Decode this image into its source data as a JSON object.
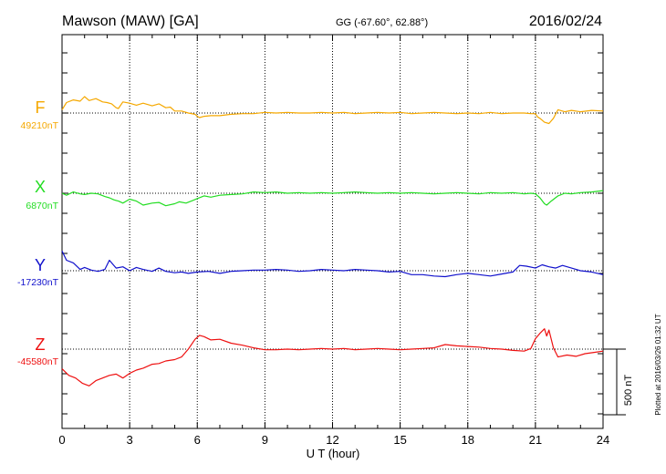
{
  "header": {
    "station": "Mawson (MAW)  [GA]",
    "coords": "GG (-67.60°,  62.88°)",
    "date": "2016/02/24"
  },
  "scale_label": "500 nT",
  "footer": "Plotted at 2016/03/26 01:32 UT",
  "colors": {
    "F": "#f5a800",
    "X": "#22dd22",
    "Y": "#1010cc",
    "Z": "#ee1010",
    "axis": "#000000",
    "grid": "#000000"
  },
  "chart_data": {
    "type": "line",
    "xlabel": "U T (hour)",
    "xlim": [
      0,
      24
    ],
    "x_ticks": [
      "0",
      "3",
      "6",
      "9",
      "12",
      "15",
      "18",
      "21",
      "24"
    ],
    "scale_nT": 500,
    "series": [
      {
        "name": "F",
        "baseline_label": "49210nT",
        "baseline": 49210,
        "x": [
          0,
          0.2,
          0.5,
          0.8,
          1.0,
          1.2,
          1.5,
          1.8,
          2.0,
          2.2,
          2.4,
          2.5,
          2.7,
          3.0,
          3.3,
          3.6,
          4.0,
          4.3,
          4.6,
          4.8,
          5.0,
          5.3,
          5.6,
          5.9,
          6.0,
          6.1,
          6.3,
          6.6,
          7.0,
          7.5,
          8.0,
          8.5,
          9.0,
          9.5,
          10,
          10.5,
          11,
          11.5,
          12,
          12.5,
          13,
          13.5,
          14,
          14.5,
          15,
          15.5,
          16,
          16.5,
          17,
          17.5,
          18,
          18.5,
          19,
          19.5,
          20,
          20.5,
          20.8,
          21.0,
          21.1,
          21.2,
          21.4,
          21.6,
          21.7,
          21.8,
          22.0,
          22.3,
          22.6,
          23,
          23.5,
          24
        ],
        "values": [
          25,
          80,
          100,
          90,
          125,
          95,
          110,
          85,
          80,
          70,
          40,
          35,
          85,
          75,
          60,
          75,
          55,
          70,
          40,
          45,
          15,
          15,
          0,
          -10,
          -25,
          -35,
          -25,
          -20,
          -20,
          -10,
          -5,
          -5,
          5,
          0,
          5,
          0,
          0,
          5,
          0,
          5,
          -5,
          0,
          5,
          0,
          5,
          -5,
          0,
          5,
          0,
          -5,
          0,
          -5,
          5,
          -5,
          0,
          0,
          -5,
          -5,
          -30,
          -40,
          -70,
          -80,
          -60,
          -40,
          25,
          10,
          20,
          10,
          20,
          15
        ]
      },
      {
        "name": "X",
        "baseline_label": "6870nT",
        "baseline": 6870,
        "x": [
          0,
          0.2,
          0.5,
          0.8,
          1.0,
          1.3,
          1.6,
          1.9,
          2.1,
          2.3,
          2.5,
          2.7,
          3.0,
          3.3,
          3.6,
          4.0,
          4.3,
          4.6,
          5.0,
          5.2,
          5.5,
          5.8,
          6.0,
          6.3,
          6.6,
          7.0,
          7.5,
          8.0,
          8.5,
          9.0,
          9.5,
          10,
          10.5,
          11,
          11.5,
          12,
          12.5,
          13,
          13.5,
          14,
          14.5,
          15,
          15.5,
          16,
          16.5,
          17,
          17.5,
          18,
          18.5,
          19,
          19.5,
          20,
          20.5,
          20.8,
          21.0,
          21.2,
          21.4,
          21.5,
          21.7,
          22.0,
          22.3,
          22.6,
          23,
          23.5,
          24
        ],
        "values": [
          0,
          -15,
          10,
          -5,
          -10,
          0,
          -5,
          -25,
          -35,
          -50,
          -60,
          -75,
          -45,
          -60,
          -90,
          -75,
          -70,
          -95,
          -80,
          -65,
          -75,
          -55,
          -40,
          -20,
          -30,
          -15,
          -10,
          -5,
          10,
          5,
          10,
          0,
          5,
          0,
          5,
          0,
          5,
          10,
          5,
          0,
          5,
          0,
          5,
          0,
          -5,
          0,
          5,
          0,
          -5,
          5,
          0,
          5,
          -5,
          0,
          -5,
          -35,
          -80,
          -90,
          -60,
          -20,
          0,
          -5,
          5,
          10,
          20
        ]
      },
      {
        "name": "Y",
        "baseline_label": "-17230nT",
        "baseline": -17230,
        "x": [
          0,
          0.2,
          0.5,
          0.8,
          1.0,
          1.3,
          1.6,
          1.9,
          2.1,
          2.4,
          2.7,
          3.0,
          3.3,
          3.6,
          4.0,
          4.3,
          4.6,
          5.0,
          5.3,
          5.6,
          6.0,
          6.5,
          7.0,
          7.5,
          8.0,
          8.5,
          9.0,
          9.5,
          10,
          10.5,
          11,
          11.5,
          12,
          12.5,
          13,
          13.5,
          14,
          14.5,
          15,
          15.5,
          16,
          16.5,
          17,
          17.5,
          18,
          18.5,
          19,
          19.5,
          20,
          20.3,
          20.6,
          21.0,
          21.3,
          21.6,
          21.9,
          22.2,
          22.6,
          23,
          23.5,
          24
        ],
        "values": [
          150,
          80,
          60,
          10,
          25,
          5,
          -5,
          10,
          80,
          20,
          30,
          0,
          25,
          10,
          -5,
          20,
          -5,
          -15,
          -10,
          -20,
          -10,
          -5,
          -20,
          -5,
          0,
          5,
          5,
          10,
          5,
          -5,
          0,
          10,
          5,
          0,
          10,
          5,
          0,
          -10,
          -5,
          -30,
          -30,
          -40,
          -45,
          -30,
          -20,
          -30,
          -40,
          -25,
          -10,
          40,
          35,
          20,
          45,
          30,
          20,
          40,
          20,
          0,
          -10,
          -30
        ]
      },
      {
        "name": "Z",
        "baseline_label": "-45580nT",
        "baseline": -45580,
        "x": [
          0,
          0.3,
          0.6,
          0.9,
          1.2,
          1.5,
          1.8,
          2.1,
          2.4,
          2.7,
          3.0,
          3.3,
          3.6,
          4.0,
          4.3,
          4.6,
          5.0,
          5.3,
          5.6,
          5.9,
          6.1,
          6.3,
          6.6,
          7.0,
          7.5,
          8.0,
          8.5,
          9.0,
          9.5,
          10,
          10.5,
          11,
          11.5,
          12,
          12.5,
          13,
          13.5,
          14,
          14.5,
          15,
          15.5,
          16,
          16.5,
          17,
          17.5,
          18,
          18.5,
          19,
          19.5,
          20,
          20.5,
          20.8,
          21.0,
          21.2,
          21.4,
          21.5,
          21.6,
          21.8,
          22.0,
          22.4,
          22.8,
          23.2,
          23.6,
          24
        ],
        "values": [
          -150,
          -200,
          -220,
          -260,
          -280,
          -240,
          -220,
          -200,
          -190,
          -220,
          -185,
          -160,
          -145,
          -115,
          -110,
          -90,
          -80,
          -60,
          0,
          75,
          105,
          95,
          70,
          75,
          45,
          30,
          10,
          -5,
          -5,
          0,
          -5,
          0,
          5,
          0,
          5,
          -5,
          0,
          5,
          0,
          -5,
          0,
          5,
          10,
          35,
          25,
          20,
          15,
          5,
          0,
          -10,
          -15,
          5,
          80,
          120,
          155,
          100,
          145,
          10,
          -60,
          -45,
          -55,
          -35,
          -25,
          -15
        ]
      }
    ]
  }
}
